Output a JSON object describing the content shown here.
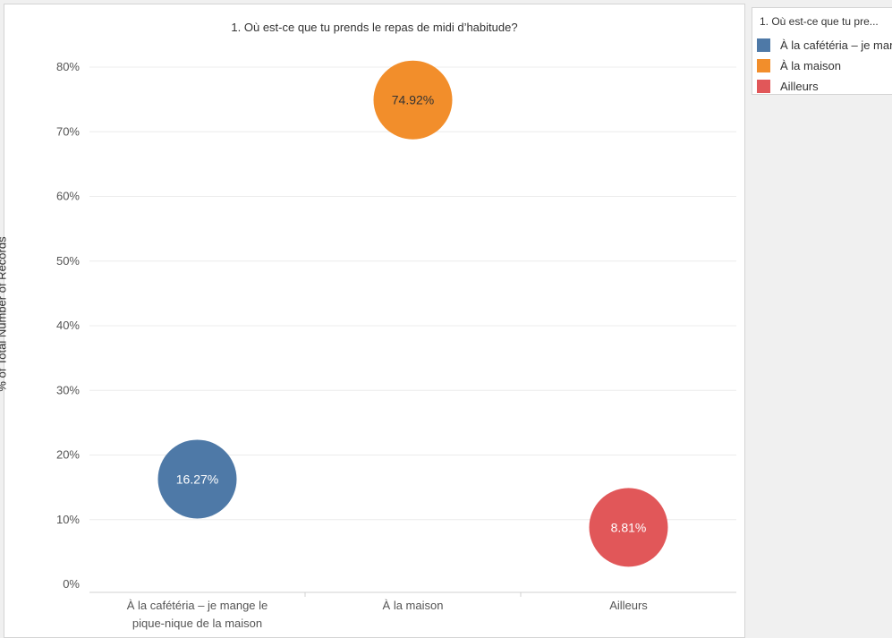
{
  "chart_data": {
    "type": "scatter",
    "title": "1. Où est-ce que tu prends le repas de midi d’habitude?",
    "xlabel": "",
    "ylabel": "% of Total Number of Records",
    "categories": [
      "À la cafétéria – je mange le pique-nique de la maison",
      "À la maison",
      "Ailleurs"
    ],
    "category_tick_lines": [
      [
        "À la cafétéria – je mange le",
        "pique-nique de la maison"
      ],
      [
        "À la maison"
      ],
      [
        "Ailleurs"
      ]
    ],
    "values": [
      16.27,
      74.92,
      8.81
    ],
    "data_labels": [
      "16.27%",
      "74.92%",
      "8.81%"
    ],
    "colors": [
      "#4e79a7",
      "#f28e2b",
      "#e15759"
    ],
    "label_colors": [
      "#ffffff",
      "#333333",
      "#ffffff"
    ],
    "ylim": [
      0,
      80
    ],
    "yticks": [
      0,
      10,
      20,
      30,
      40,
      50,
      60,
      70,
      80
    ],
    "ytick_labels": [
      "0%",
      "10%",
      "20%",
      "30%",
      "40%",
      "50%",
      "60%",
      "70%",
      "80%"
    ],
    "grid": true,
    "legend": {
      "title": "1. Où est-ce que tu pre...",
      "items": [
        "À la cafétéria – je mang",
        "À la maison",
        "Ailleurs"
      ],
      "placement": "right"
    }
  }
}
